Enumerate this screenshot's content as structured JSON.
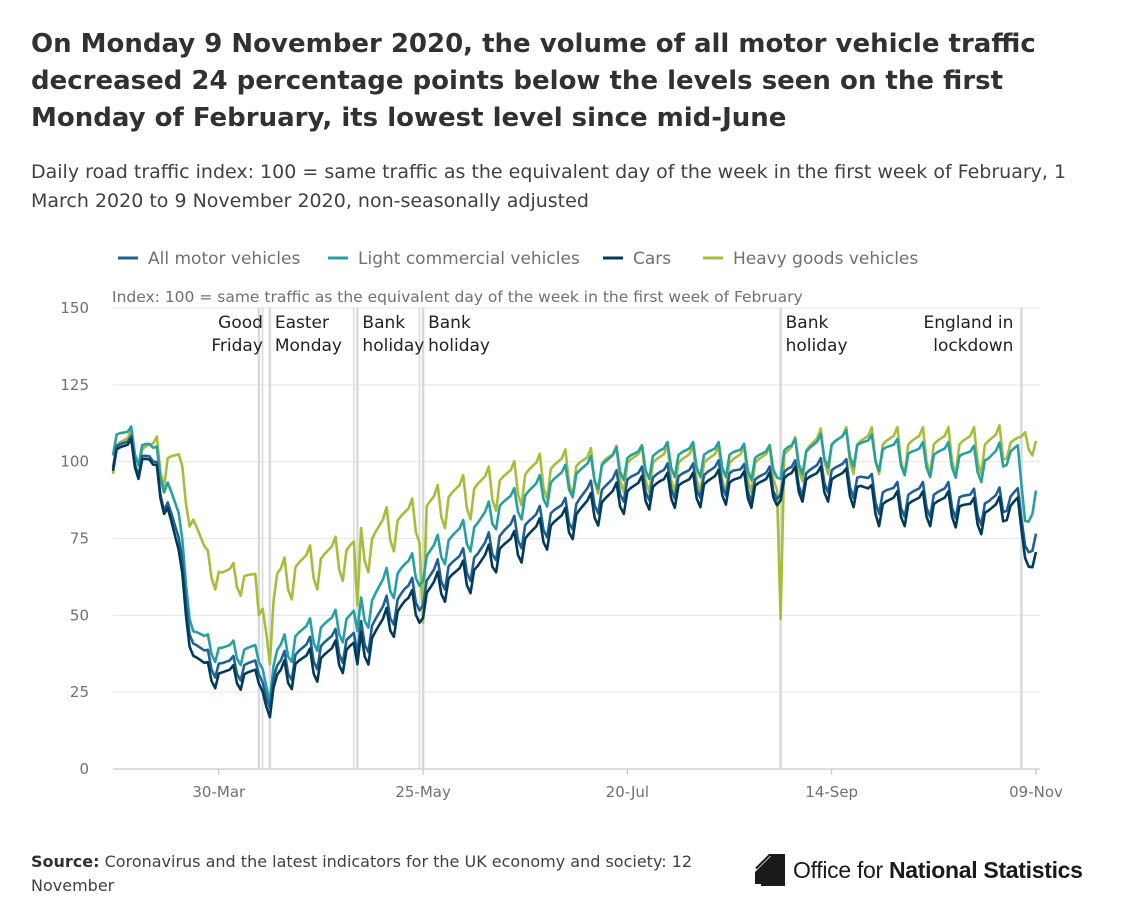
{
  "header": {
    "title": "On Monday 9 November 2020, the volume of all motor vehicle traffic decreased 24 percentage points below the levels seen on the first Monday of February, its lowest level since mid-June",
    "subtitle": "Daily road traffic index: 100 = same traffic as the equivalent day of the week in the first week of February, 1 March 2020 to 9 November 2020, non-seasonally adjusted"
  },
  "footer": {
    "source_label": "Source:",
    "source_text": "Coronavirus and the latest indicators for the UK economy and society: 12 November",
    "logo_prefix": "Office for ",
    "logo_strong": "National Statistics"
  },
  "colors": {
    "all": "#206095",
    "lcv": "#27a0a0",
    "cars": "#003c57",
    "hgv": "#a8bd3a",
    "grid": "#e6e6e6",
    "marker": "#d9d9d9"
  },
  "chart_data": {
    "type": "line",
    "ylabel_note": "Index: 100 = same traffic as the equivalent day of the week in the first week of February",
    "x_start": "2020-03-01",
    "x_end": "2020-11-09",
    "ylim": [
      0,
      150
    ],
    "yticks": [
      0,
      25,
      50,
      75,
      100,
      125,
      150
    ],
    "xticks": [
      {
        "label": "30-Mar",
        "day": 29
      },
      {
        "label": "25-May",
        "day": 85
      },
      {
        "label": "20-Jul",
        "day": 141
      },
      {
        "label": "14-Sep",
        "day": 197
      },
      {
        "label": "09-Nov",
        "day": 253
      }
    ],
    "series": [
      {
        "key": "all",
        "name": "All motor vehicles",
        "color": "#206095",
        "anchors": [
          [
            0,
            104
          ],
          [
            5,
            103
          ],
          [
            10,
            99
          ],
          [
            14,
            90
          ],
          [
            18,
            72
          ],
          [
            22,
            40
          ],
          [
            26,
            35
          ],
          [
            30,
            33
          ],
          [
            35,
            33
          ],
          [
            40,
            33
          ],
          [
            43,
            25
          ],
          [
            45,
            31
          ],
          [
            50,
            36
          ],
          [
            55,
            38
          ],
          [
            60,
            40
          ],
          [
            65,
            41
          ],
          [
            70,
            44
          ],
          [
            75,
            51
          ],
          [
            80,
            56
          ],
          [
            85,
            58
          ],
          [
            90,
            64
          ],
          [
            95,
            66
          ],
          [
            100,
            68
          ],
          [
            105,
            74
          ],
          [
            110,
            77
          ],
          [
            115,
            79
          ],
          [
            120,
            82
          ],
          [
            125,
            83
          ],
          [
            130,
            88
          ],
          [
            135,
            90
          ],
          [
            140,
            93
          ],
          [
            145,
            93
          ],
          [
            150,
            94
          ],
          [
            155,
            94
          ],
          [
            160,
            94
          ],
          [
            165,
            95
          ],
          [
            170,
            95
          ],
          [
            175,
            93
          ],
          [
            180,
            93
          ],
          [
            185,
            95
          ],
          [
            190,
            95
          ],
          [
            195,
            96
          ],
          [
            200,
            96
          ],
          [
            205,
            93
          ],
          [
            210,
            89
          ],
          [
            215,
            88
          ],
          [
            220,
            88
          ],
          [
            225,
            88
          ],
          [
            230,
            88
          ],
          [
            235,
            86
          ],
          [
            240,
            85
          ],
          [
            245,
            87
          ],
          [
            248,
            90
          ],
          [
            250,
            70
          ],
          [
            253,
            76
          ]
        ],
        "weekly_amp": 6,
        "dips": [
          [
            40,
            -6
          ],
          [
            43,
            -6
          ],
          [
            67,
            -8
          ],
          [
            85,
            -6
          ],
          [
            183,
            -6
          ]
        ]
      },
      {
        "key": "lcv",
        "name": "Light commercial vehicles",
        "color": "#27a0a0",
        "anchors": [
          [
            0,
            108
          ],
          [
            5,
            106
          ],
          [
            10,
            103
          ],
          [
            14,
            96
          ],
          [
            18,
            80
          ],
          [
            22,
            44
          ],
          [
            26,
            40
          ],
          [
            30,
            38
          ],
          [
            35,
            38
          ],
          [
            40,
            38
          ],
          [
            43,
            28
          ],
          [
            45,
            36
          ],
          [
            50,
            42
          ],
          [
            55,
            44
          ],
          [
            60,
            46
          ],
          [
            65,
            48
          ],
          [
            70,
            52
          ],
          [
            75,
            60
          ],
          [
            80,
            64
          ],
          [
            85,
            66
          ],
          [
            90,
            72
          ],
          [
            95,
            75
          ],
          [
            100,
            78
          ],
          [
            105,
            84
          ],
          [
            110,
            86
          ],
          [
            115,
            89
          ],
          [
            120,
            92
          ],
          [
            125,
            94
          ],
          [
            130,
            96
          ],
          [
            135,
            98
          ],
          [
            140,
            100
          ],
          [
            145,
            100
          ],
          [
            150,
            101
          ],
          [
            155,
            101
          ],
          [
            160,
            101
          ],
          [
            165,
            101
          ],
          [
            170,
            101
          ],
          [
            175,
            100
          ],
          [
            180,
            100
          ],
          [
            185,
            102
          ],
          [
            190,
            102
          ],
          [
            195,
            104
          ],
          [
            200,
            105
          ],
          [
            205,
            104
          ],
          [
            210,
            103
          ],
          [
            215,
            102
          ],
          [
            220,
            101
          ],
          [
            225,
            101
          ],
          [
            230,
            101
          ],
          [
            235,
            100
          ],
          [
            240,
            99
          ],
          [
            245,
            102
          ],
          [
            248,
            104
          ],
          [
            250,
            78
          ],
          [
            253,
            90
          ]
        ],
        "weekly_amp": 6,
        "dips": [
          [
            40,
            -7
          ],
          [
            43,
            -7
          ],
          [
            67,
            -8
          ],
          [
            85,
            -6
          ],
          [
            183,
            -8
          ]
        ]
      },
      {
        "key": "cars",
        "name": "Cars",
        "color": "#003c57",
        "anchors": [
          [
            0,
            103
          ],
          [
            5,
            102
          ],
          [
            10,
            98
          ],
          [
            14,
            89
          ],
          [
            18,
            68
          ],
          [
            22,
            36
          ],
          [
            26,
            31
          ],
          [
            30,
            30
          ],
          [
            35,
            30
          ],
          [
            40,
            30
          ],
          [
            43,
            22
          ],
          [
            45,
            28
          ],
          [
            50,
            33
          ],
          [
            55,
            34
          ],
          [
            60,
            36
          ],
          [
            65,
            38
          ],
          [
            70,
            40
          ],
          [
            75,
            47
          ],
          [
            80,
            52
          ],
          [
            85,
            54
          ],
          [
            90,
            60
          ],
          [
            95,
            62
          ],
          [
            100,
            64
          ],
          [
            105,
            70
          ],
          [
            110,
            72
          ],
          [
            115,
            75
          ],
          [
            120,
            78
          ],
          [
            125,
            80
          ],
          [
            130,
            84
          ],
          [
            135,
            86
          ],
          [
            140,
            89
          ],
          [
            145,
            90
          ],
          [
            150,
            91
          ],
          [
            155,
            91
          ],
          [
            160,
            91
          ],
          [
            165,
            92
          ],
          [
            170,
            92
          ],
          [
            175,
            91
          ],
          [
            180,
            91
          ],
          [
            185,
            93
          ],
          [
            190,
            93
          ],
          [
            195,
            93
          ],
          [
            200,
            93
          ],
          [
            205,
            90
          ],
          [
            210,
            85
          ],
          [
            215,
            85
          ],
          [
            220,
            85
          ],
          [
            225,
            85
          ],
          [
            230,
            85
          ],
          [
            235,
            83
          ],
          [
            240,
            82
          ],
          [
            245,
            84
          ],
          [
            248,
            87
          ],
          [
            250,
            66
          ],
          [
            253,
            70
          ]
        ],
        "weekly_amp": 6,
        "dips": [
          [
            40,
            -6
          ],
          [
            43,
            -6
          ],
          [
            67,
            -8
          ],
          [
            85,
            -6
          ],
          [
            183,
            -6
          ]
        ]
      },
      {
        "key": "hgv",
        "name": "Heavy goods vehicles",
        "color": "#a8bd3a",
        "anchors": [
          [
            0,
            104
          ],
          [
            5,
            103
          ],
          [
            10,
            102
          ],
          [
            14,
            100
          ],
          [
            18,
            98
          ],
          [
            22,
            80
          ],
          [
            26,
            66
          ],
          [
            30,
            62
          ],
          [
            35,
            62
          ],
          [
            40,
            60
          ],
          [
            43,
            45
          ],
          [
            45,
            60
          ],
          [
            50,
            64
          ],
          [
            55,
            66
          ],
          [
            60,
            68
          ],
          [
            65,
            70
          ],
          [
            70,
            72
          ],
          [
            75,
            78
          ],
          [
            80,
            80
          ],
          [
            85,
            82
          ],
          [
            90,
            86
          ],
          [
            95,
            88
          ],
          [
            100,
            90
          ],
          [
            105,
            92
          ],
          [
            110,
            93
          ],
          [
            115,
            95
          ],
          [
            120,
            96
          ],
          [
            125,
            97
          ],
          [
            130,
            97
          ],
          [
            135,
            98
          ],
          [
            140,
            98
          ],
          [
            145,
            98
          ],
          [
            150,
            98
          ],
          [
            155,
            98
          ],
          [
            160,
            98
          ],
          [
            165,
            98
          ],
          [
            170,
            98
          ],
          [
            175,
            98
          ],
          [
            180,
            98
          ],
          [
            185,
            100
          ],
          [
            190,
            102
          ],
          [
            195,
            104
          ],
          [
            200,
            104
          ],
          [
            205,
            104
          ],
          [
            210,
            104
          ],
          [
            215,
            104
          ],
          [
            220,
            104
          ],
          [
            225,
            104
          ],
          [
            230,
            104
          ],
          [
            235,
            104
          ],
          [
            240,
            104
          ],
          [
            245,
            105
          ],
          [
            248,
            106
          ],
          [
            250,
            106
          ],
          [
            253,
            106
          ]
        ],
        "weekly_amp": 8,
        "dips": [
          [
            40,
            -15
          ],
          [
            43,
            -12
          ],
          [
            67,
            -22
          ],
          [
            85,
            -36
          ],
          [
            183,
            -52
          ]
        ]
      }
    ],
    "annotations": [
      {
        "day": 40,
        "lines": [
          "Good",
          "Friday"
        ],
        "anchor": "end"
      },
      {
        "day": 43,
        "lines": [
          "Easter",
          "Monday"
        ],
        "anchor": "start"
      },
      {
        "day": 67,
        "lines": [
          "Bank",
          "holiday"
        ],
        "anchor": "start"
      },
      {
        "day": 85,
        "lines": [
          "Bank",
          "holiday"
        ],
        "anchor": "start"
      },
      {
        "day": 183,
        "lines": [
          "Bank",
          "holiday"
        ],
        "anchor": "start"
      },
      {
        "day": 249,
        "lines": [
          "England in",
          "lockdown"
        ],
        "anchor": "end"
      }
    ]
  }
}
